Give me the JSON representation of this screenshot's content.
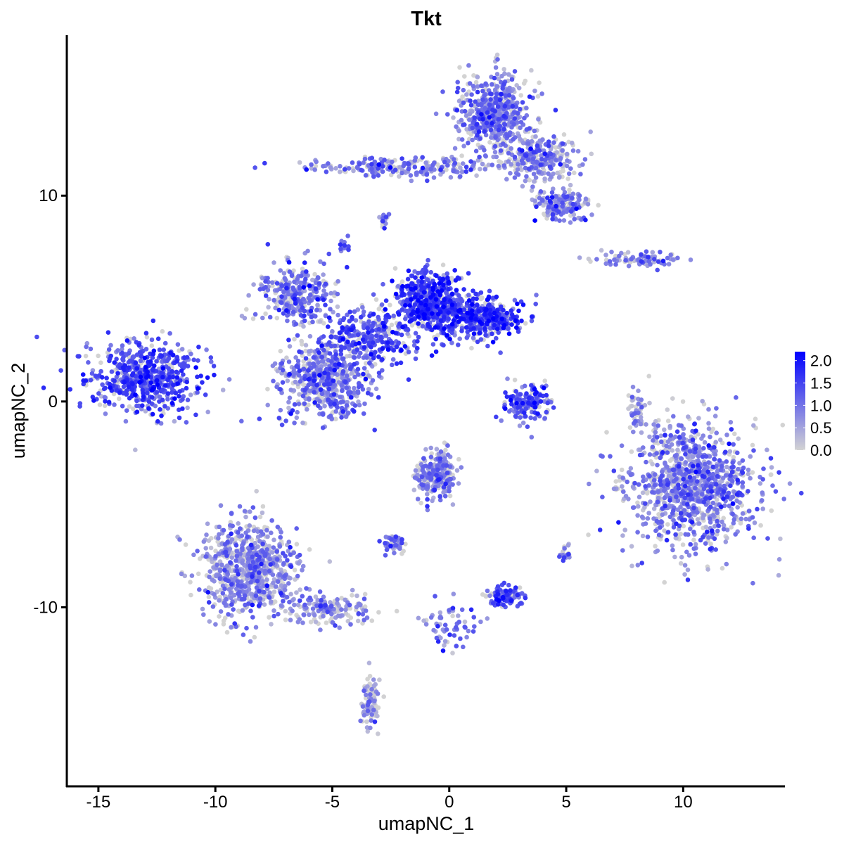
{
  "chart_data": {
    "type": "scatter",
    "title": "Tkt",
    "xlabel": "umapNC_1",
    "ylabel": "umapNC_2",
    "xlim": [
      -16.35,
      14.35
    ],
    "ylim": [
      -18.7,
      17.8
    ],
    "xticks": [
      -15,
      -10,
      -5,
      0,
      5,
      10
    ],
    "yticks": [
      -10,
      0,
      10
    ],
    "xtick_labels": [
      "-15",
      "-10",
      "-5",
      "0",
      "5",
      "10"
    ],
    "ytick_labels": [
      "-10",
      "0",
      "10"
    ],
    "grid": false,
    "legend": {
      "placement": "right",
      "type": "colorbar",
      "min": 0.0,
      "max": 2.2,
      "labels": [
        "2.0",
        "1.5",
        "1.0",
        "0.5",
        "0.0"
      ],
      "values": [
        2.0,
        1.5,
        1.0,
        0.5,
        0.0
      ],
      "low_color": "#D3D3D3",
      "high_color": "#0000FF"
    },
    "clusters": [
      {
        "x": -13.0,
        "y": 1.2,
        "sx": 1.5,
        "sy": 1.1,
        "n": 600,
        "expr": 1.35
      },
      {
        "x": -5.2,
        "y": 0.9,
        "sx": 1.2,
        "sy": 1.2,
        "n": 550,
        "expr": 0.9
      },
      {
        "x": -6.6,
        "y": 5.3,
        "sx": 1.0,
        "sy": 0.9,
        "n": 300,
        "expr": 0.95
      },
      {
        "x": -0.9,
        "y": 4.8,
        "sx": 0.9,
        "sy": 0.9,
        "n": 500,
        "expr": 1.5
      },
      {
        "x": 1.3,
        "y": 4.1,
        "sx": 1.2,
        "sy": 0.6,
        "n": 400,
        "expr": 1.5
      },
      {
        "x": -3.4,
        "y": 3.2,
        "sx": 1.3,
        "sy": 0.9,
        "n": 300,
        "expr": 1.3
      },
      {
        "x": 1.9,
        "y": 14.0,
        "sx": 1.0,
        "sy": 1.2,
        "n": 550,
        "expr": 0.85
      },
      {
        "x": 3.9,
        "y": 11.8,
        "sx": 1.0,
        "sy": 0.7,
        "n": 250,
        "expr": 0.8
      },
      {
        "x": -1.5,
        "y": 11.4,
        "sx": 2.6,
        "sy": 0.35,
        "n": 220,
        "expr": 0.9
      },
      {
        "x": 4.9,
        "y": 9.5,
        "sx": 0.7,
        "sy": 0.5,
        "n": 160,
        "expr": 0.85
      },
      {
        "x": 10.4,
        "y": -4.1,
        "sx": 1.7,
        "sy": 1.9,
        "n": 1100,
        "expr": 0.85
      },
      {
        "x": -8.5,
        "y": -8.2,
        "sx": 1.3,
        "sy": 1.4,
        "n": 800,
        "expr": 0.7
      },
      {
        "x": -5.0,
        "y": -10.1,
        "sx": 1.1,
        "sy": 0.45,
        "n": 150,
        "expr": 0.7
      },
      {
        "x": -0.6,
        "y": -3.6,
        "sx": 0.55,
        "sy": 0.7,
        "n": 250,
        "expr": 0.8
      },
      {
        "x": 3.3,
        "y": -0.1,
        "sx": 0.6,
        "sy": 0.6,
        "n": 150,
        "expr": 1.3
      },
      {
        "x": 2.3,
        "y": -9.5,
        "sx": 0.5,
        "sy": 0.3,
        "n": 120,
        "expr": 1.3
      },
      {
        "x": 8.2,
        "y": 6.9,
        "sx": 1.2,
        "sy": 0.22,
        "n": 90,
        "expr": 0.9
      },
      {
        "x": -2.4,
        "y": -6.9,
        "sx": 0.3,
        "sy": 0.25,
        "n": 50,
        "expr": 1.0
      },
      {
        "x": -3.4,
        "y": -14.6,
        "sx": 0.25,
        "sy": 0.8,
        "n": 80,
        "expr": 0.5
      },
      {
        "x": 0.0,
        "y": -10.9,
        "sx": 0.8,
        "sy": 0.7,
        "n": 60,
        "expr": 0.8
      },
      {
        "x": 8.0,
        "y": -0.4,
        "sx": 0.2,
        "sy": 1.0,
        "n": 40,
        "expr": 0.6
      },
      {
        "x": -2.8,
        "y": 8.8,
        "sx": 0.15,
        "sy": 0.2,
        "n": 15,
        "expr": 1.0
      },
      {
        "x": -4.5,
        "y": 7.5,
        "sx": 0.15,
        "sy": 0.2,
        "n": 15,
        "expr": 1.0
      },
      {
        "x": 5.0,
        "y": -7.4,
        "sx": 0.2,
        "sy": 0.25,
        "n": 20,
        "expr": 0.9
      }
    ]
  }
}
